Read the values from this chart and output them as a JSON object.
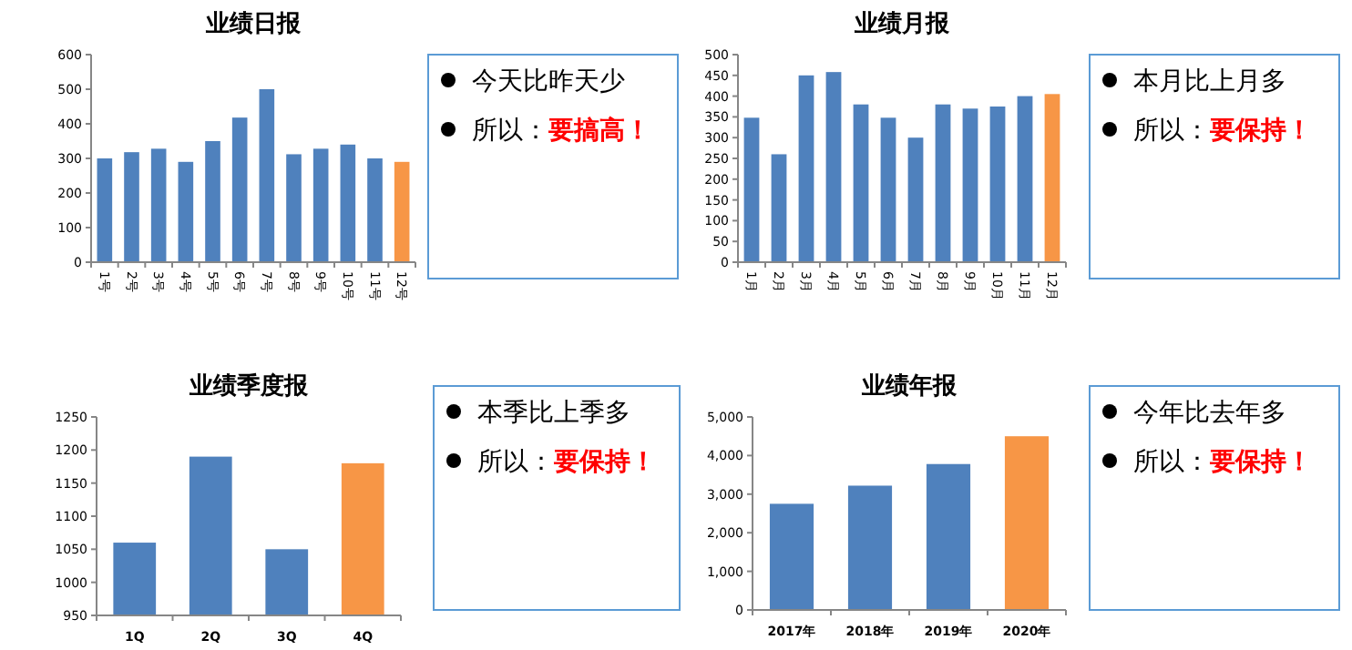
{
  "chart_data": [
    {
      "type": "bar",
      "title": "业绩日报",
      "categories": [
        "1号",
        "2号",
        "3号",
        "4号",
        "5号",
        "6号",
        "7号",
        "8号",
        "9号",
        "10号",
        "11号",
        "12号"
      ],
      "values": [
        300,
        318,
        328,
        290,
        350,
        418,
        500,
        312,
        328,
        340,
        300,
        290
      ],
      "colors": [
        "#4f81bd",
        "#4f81bd",
        "#4f81bd",
        "#4f81bd",
        "#4f81bd",
        "#4f81bd",
        "#4f81bd",
        "#4f81bd",
        "#4f81bd",
        "#4f81bd",
        "#4f81bd",
        "#f79646"
      ],
      "ylim": [
        0,
        600
      ],
      "yticks": [
        0,
        100,
        200,
        300,
        400,
        500,
        600
      ],
      "grid": false
    },
    {
      "type": "other",
      "annotations": [
        "今天比昨天少",
        "所以：",
        "要搞高！"
      ]
    },
    {
      "type": "bar",
      "title": "业绩月报",
      "categories": [
        "1月",
        "2月",
        "3月",
        "4月",
        "5月",
        "6月",
        "7月",
        "8月",
        "9月",
        "10月",
        "11月",
        "12月"
      ],
      "values": [
        348,
        260,
        450,
        458,
        380,
        348,
        300,
        380,
        370,
        375,
        400,
        405
      ],
      "colors": [
        "#4f81bd",
        "#4f81bd",
        "#4f81bd",
        "#4f81bd",
        "#4f81bd",
        "#4f81bd",
        "#4f81bd",
        "#4f81bd",
        "#4f81bd",
        "#4f81bd",
        "#4f81bd",
        "#f79646"
      ],
      "ylim": [
        0,
        500
      ],
      "yticks": [
        0,
        50,
        100,
        150,
        200,
        250,
        300,
        350,
        400,
        450,
        500
      ],
      "grid": false
    },
    {
      "type": "other",
      "annotations": [
        "本月比上月多",
        "所以：",
        "要保持！"
      ]
    },
    {
      "type": "bar",
      "title": "业绩季度报",
      "categories": [
        "1Q",
        "2Q",
        "3Q",
        "4Q"
      ],
      "values": [
        1060,
        1190,
        1050,
        1180
      ],
      "colors": [
        "#4f81bd",
        "#4f81bd",
        "#4f81bd",
        "#f79646"
      ],
      "ylim": [
        950,
        1250
      ],
      "yticks": [
        950,
        1000,
        1050,
        1100,
        1150,
        1200,
        1250
      ],
      "grid": false
    },
    {
      "type": "other",
      "annotations": [
        "本季比上季多",
        "所以：",
        "要保持！"
      ]
    },
    {
      "type": "bar",
      "title": "业绩年报",
      "categories": [
        "2017年",
        "2018年",
        "2019年",
        "2020年"
      ],
      "values": [
        2750,
        3220,
        3780,
        4500
      ],
      "colors": [
        "#4f81bd",
        "#4f81bd",
        "#4f81bd",
        "#f79646"
      ],
      "ylim": [
        0,
        5000
      ],
      "yticks": [
        0,
        {
          "value": 1000,
          "label": "1,000"
        },
        {
          "value": 2000,
          "label": "2,000"
        },
        {
          "value": 3000,
          "label": "3,000"
        },
        {
          "value": 4000,
          "label": "4,000"
        },
        {
          "value": 5000,
          "label": "5,000"
        }
      ],
      "grid": false
    },
    {
      "type": "other",
      "annotations": [
        "今年比去年多",
        "所以：",
        "要保持！"
      ]
    }
  ]
}
